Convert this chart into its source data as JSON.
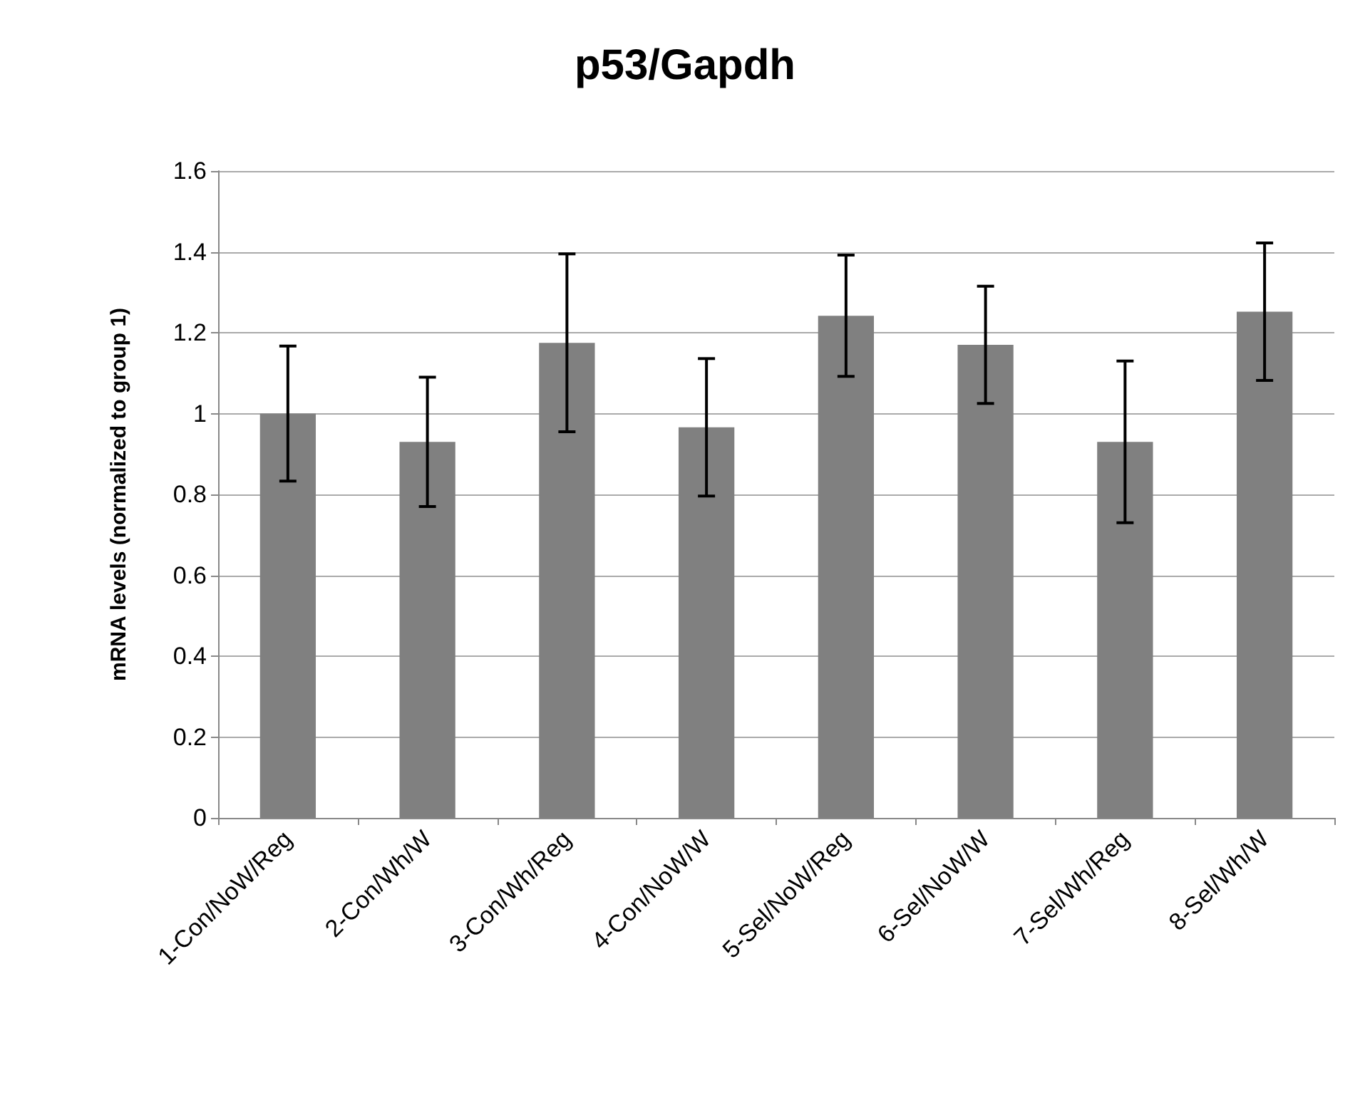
{
  "chart_data": {
    "type": "bar",
    "title": "p53/Gapdh",
    "ylabel": "mRNA levels (normalized to group 1)",
    "categories": [
      "1-Con/NoW/Reg",
      "2-Con/Wh/W",
      "3-Con/Wh/Reg",
      "4-Con/NoW/W",
      "5-Sel/NoW/Reg",
      "6-Sel/NoW/W",
      "7-Sel/Wh/Reg",
      "8-Sel/Wh/W"
    ],
    "values": [
      1.0,
      0.93,
      1.175,
      0.966,
      1.242,
      1.17,
      0.93,
      1.252
    ],
    "errors": [
      0.167,
      0.16,
      0.22,
      0.17,
      0.15,
      0.145,
      0.2,
      0.17
    ],
    "color": "#808080",
    "ylim": [
      0,
      1.6
    ],
    "yticks": [
      0,
      0.2,
      0.4,
      0.6,
      0.8,
      1,
      1.2,
      1.4,
      1.6
    ],
    "grid": "y"
  }
}
